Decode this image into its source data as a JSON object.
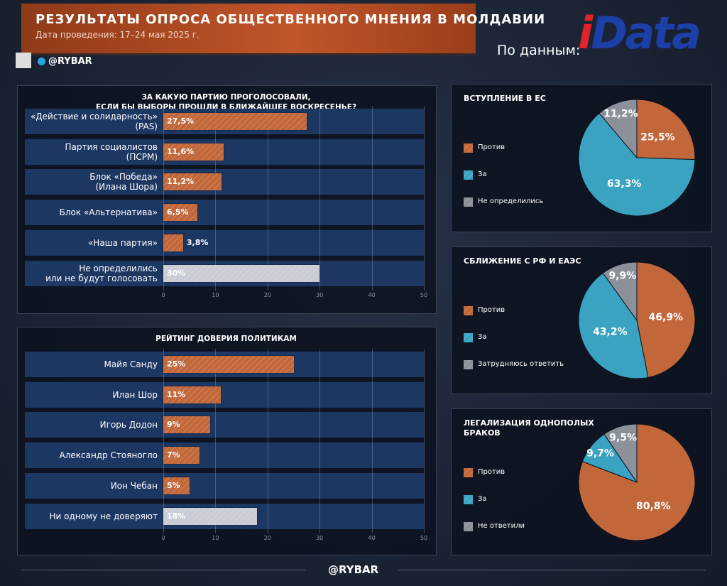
{
  "header": {
    "title": "РЕЗУЛЬТАТЫ ОПРОСА ОБЩЕСТВЕННОГО МНЕНИЯ В МОЛДАВИИ",
    "subtitle": "Дата проведения: 17–24 мая 2025 г.",
    "handle": "@RYBAR",
    "source": "По данным:",
    "logo": "iData",
    "footer": "@RYBAR"
  },
  "chart_data": [
    {
      "type": "bar",
      "orientation": "horizontal",
      "title": "ЗА КАКУЮ ПАРТИЮ ПРОГОЛОСОВАЛИ,\nЕСЛИ БЫ ВЫБОРЫ ПРОШЛИ В БЛИЖАЙШЕЕ ВОСКРЕСЕНЬЕ?",
      "categories": [
        "«Действие и солидарность»\n(PAS)",
        "Партия социалистов\n(ПСРМ)",
        "Блок «Победа»\n(Илана Шора)",
        "Блок «Альтернатива»",
        "«Наша партия»",
        "Не определились\nили не будут голосовать"
      ],
      "values": [
        27.5,
        11.6,
        11.2,
        6.5,
        3.8,
        30
      ],
      "value_labels": [
        "27,5%",
        "11,6%",
        "11,2%",
        "6,5%",
        "3,8%",
        "30%"
      ],
      "colors": [
        "#c2673a",
        "#c2673a",
        "#c2673a",
        "#c2673a",
        "#c2673a",
        "#c9ccd4"
      ],
      "xlim": [
        0,
        50
      ],
      "xticks": [
        0,
        10,
        20,
        30,
        40,
        50
      ],
      "grid": true
    },
    {
      "type": "bar",
      "orientation": "horizontal",
      "title": "РЕЙТИНГ ДОВЕРИЯ ПОЛИТИКАМ",
      "categories": [
        "Майя Санду",
        "Илан Шор",
        "Игорь Додон",
        "Александр Стояногло",
        "Ион Чебан",
        "Ни одному не доверяют"
      ],
      "values": [
        25,
        11,
        9,
        7,
        5,
        18
      ],
      "value_labels": [
        "25%",
        "11%",
        "9%",
        "7%",
        "5%",
        "18%"
      ],
      "colors": [
        "#c2673a",
        "#c2673a",
        "#c2673a",
        "#c2673a",
        "#c2673a",
        "#c9ccd4"
      ],
      "xlim": [
        0,
        50
      ],
      "xticks": [
        0,
        10,
        20,
        30,
        40,
        50
      ],
      "grid": true
    },
    {
      "type": "pie",
      "title": "ВСТУПЛЕНИЕ В ЕС",
      "categories": [
        "Против",
        "За",
        "Не определились"
      ],
      "values": [
        25.5,
        63.3,
        11.2
      ],
      "value_labels": [
        "25,5%",
        "63,3%",
        "11,2%"
      ],
      "colors": [
        "#c2673a",
        "#3aa3c2",
        "#8c9099"
      ]
    },
    {
      "type": "pie",
      "title": "СБЛИЖЕНИЕ С РФ И ЕАЭС",
      "categories": [
        "Против",
        "За",
        "Затрудняюсь ответить"
      ],
      "values": [
        46.9,
        43.2,
        9.9
      ],
      "value_labels": [
        "46,9%",
        "43,2%",
        "9,9%"
      ],
      "colors": [
        "#c2673a",
        "#3aa3c2",
        "#8c9099"
      ]
    },
    {
      "type": "pie",
      "title": "ЛЕГАЛИЗАЦИЯ ОДНОПОЛЫХ\nБРАКОВ",
      "categories": [
        "Против",
        "За",
        "Не ответили"
      ],
      "values": [
        80.8,
        9.7,
        9.5
      ],
      "value_labels": [
        "80,8%",
        "9,7%",
        "9,5%"
      ],
      "colors": [
        "#c2673a",
        "#3aa3c2",
        "#8c9099"
      ]
    }
  ]
}
